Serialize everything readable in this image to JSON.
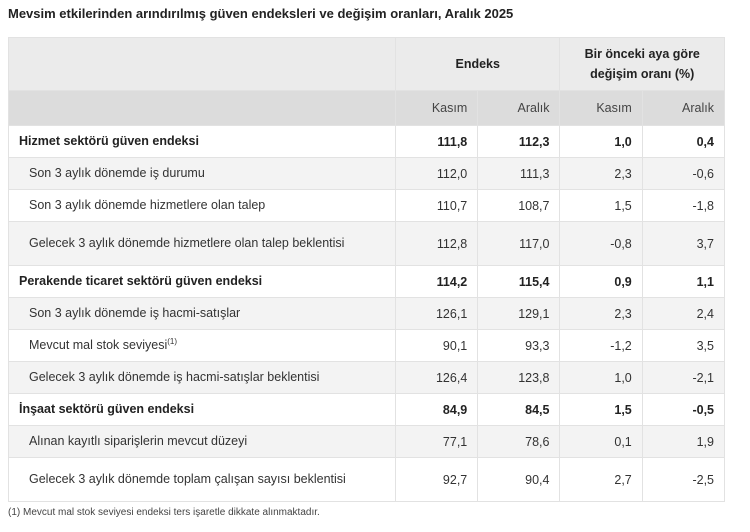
{
  "title": "Mevsim etkilerinden arındırılmış güven endeksleri ve değişim oranları, Aralık 2025",
  "header": {
    "endeks": "Endeks",
    "change": "Bir önceki aya göre değişim oranı (%)",
    "sub": [
      "Kasım",
      "Aralık",
      "Kasım",
      "Aralık"
    ]
  },
  "rows": [
    {
      "label": "Hizmet sektörü güven endeksi",
      "bold": true,
      "values": [
        "111,8",
        "112,3",
        "1,0",
        "0,4"
      ]
    },
    {
      "label": "Son 3 aylık dönemde iş durumu",
      "values": [
        "112,0",
        "111,3",
        "2,3",
        "-0,6"
      ]
    },
    {
      "label": "Son 3 aylık dönemde hizmetlere olan talep",
      "values": [
        "110,7",
        "108,7",
        "1,5",
        "-1,8"
      ]
    },
    {
      "label": "Gelecek 3 aylık dönemde hizmetlere olan talep beklentisi",
      "values": [
        "112,8",
        "117,0",
        "-0,8",
        "3,7"
      ]
    },
    {
      "label": "Perakende ticaret sektörü güven endeksi",
      "bold": true,
      "values": [
        "114,2",
        "115,4",
        "0,9",
        "1,1"
      ]
    },
    {
      "label": "Son 3 aylık dönemde iş hacmi-satışlar",
      "values": [
        "126,1",
        "129,1",
        "2,3",
        "2,4"
      ]
    },
    {
      "label": "Mevcut mal stok seviyesi",
      "sup": "(1)",
      "values": [
        "90,1",
        "93,3",
        "-1,2",
        "3,5"
      ]
    },
    {
      "label": "Gelecek 3 aylık dönemde iş hacmi-satışlar beklentisi",
      "values": [
        "126,4",
        "123,8",
        "1,0",
        "-2,1"
      ]
    },
    {
      "label": "İnşaat sektörü güven endeksi",
      "bold": true,
      "values": [
        "84,9",
        "84,5",
        "1,5",
        "-0,5"
      ]
    },
    {
      "label": "Alınan kayıtlı siparişlerin mevcut düzeyi",
      "values": [
        "77,1",
        "78,6",
        "0,1",
        "1,9"
      ]
    },
    {
      "label": "Gelecek 3 aylık dönemde toplam çalışan sayısı beklentisi",
      "values": [
        "92,7",
        "90,4",
        "2,7",
        "-2,5"
      ]
    }
  ],
  "footnote": "(1) Mevcut mal stok seviyesi endeksi ters işaretle dikkate alınmaktadır."
}
